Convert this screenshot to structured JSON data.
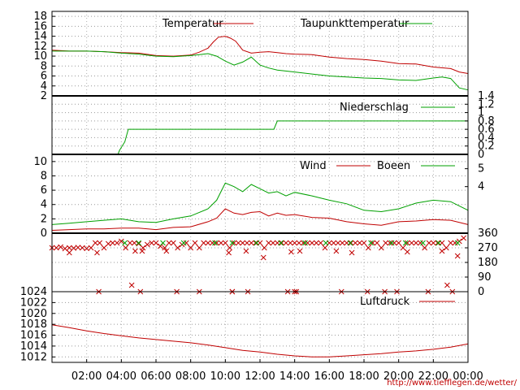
{
  "chart_data": [
    {
      "type": "line",
      "x_ticks": [
        "02:00",
        "04:00",
        "06:00",
        "08:00",
        "10:00",
        "12:00",
        "14:00",
        "16:00",
        "18:00",
        "20:00",
        "22:00",
        "00:00"
      ],
      "y_ticks": [
        "2",
        "4",
        "6",
        "8",
        "10",
        "12",
        "14",
        "16",
        "18"
      ],
      "ylim": [
        2,
        19
      ],
      "grid": true,
      "legend_position": "top",
      "series": [
        {
          "name": "Temperatur",
          "color": "#c00000",
          "x": [
            0,
            1,
            2,
            3,
            4,
            5,
            6,
            7,
            8,
            8.5,
            9,
            9.3,
            9.6,
            10,
            10.3,
            10.6,
            11,
            11.5,
            12,
            12.5,
            13,
            13.5,
            14,
            15,
            16,
            17,
            18,
            19,
            20,
            21,
            22,
            23,
            23.5,
            24
          ],
          "y": [
            11.2,
            11.0,
            11.0,
            10.9,
            10.7,
            10.6,
            10.1,
            10.0,
            10.2,
            10.8,
            11.6,
            12.8,
            13.8,
            14.0,
            13.6,
            13.0,
            11.2,
            10.6,
            10.8,
            10.9,
            10.7,
            10.5,
            10.4,
            10.3,
            9.8,
            9.5,
            9.3,
            9.0,
            8.5,
            8.4,
            7.8,
            7.5,
            6.8,
            6.5
          ]
        },
        {
          "name": "Taupunkttemperatur",
          "color": "#00a000",
          "x": [
            0,
            1,
            2,
            3,
            4,
            5,
            6,
            7,
            8,
            8.5,
            9,
            9.5,
            10,
            10.5,
            11,
            11.5,
            12,
            12.5,
            13,
            14,
            15,
            16,
            17,
            18,
            19,
            20,
            21,
            22,
            22.5,
            23,
            23.5,
            24
          ],
          "y": [
            11.0,
            11.0,
            11.0,
            10.9,
            10.6,
            10.4,
            10.0,
            9.9,
            10.1,
            10.3,
            10.5,
            10.0,
            9.0,
            8.2,
            8.8,
            9.8,
            8.2,
            7.6,
            7.2,
            6.8,
            6.4,
            6.0,
            5.8,
            5.6,
            5.5,
            5.2,
            5.1,
            5.6,
            5.8,
            5.5,
            3.6,
            3.2
          ]
        }
      ]
    },
    {
      "type": "line",
      "y_ticks_right": [
        "0",
        "0.2",
        "0.4",
        "0.6",
        "0.8",
        "1",
        "1.2",
        "1.4"
      ],
      "ylim": [
        0,
        1.4
      ],
      "grid": true,
      "legend_position": "top-right",
      "series": [
        {
          "name": "Niederschlag",
          "color": "#00a000",
          "x": [
            0,
            3.8,
            3.9,
            4.2,
            4.4,
            12.8,
            13.0,
            24
          ],
          "y": [
            0,
            0,
            0.1,
            0.3,
            0.6,
            0.6,
            0.8,
            0.8
          ]
        }
      ]
    },
    {
      "type": "line",
      "y_ticks": [
        "0",
        "2",
        "4",
        "6",
        "8",
        "10"
      ],
      "y_ticks_right": [
        "4",
        "5"
      ],
      "ylim": [
        0,
        11
      ],
      "grid": true,
      "legend_position": "top-right",
      "series": [
        {
          "name": "Wind",
          "color": "#c00000",
          "x": [
            0,
            1,
            2,
            3,
            4,
            5,
            6,
            7,
            8,
            9,
            9.5,
            10,
            10.5,
            11,
            11.5,
            12,
            12.5,
            13,
            13.5,
            14,
            15,
            16,
            17,
            18,
            19,
            20,
            21,
            22,
            23,
            24
          ],
          "y": [
            0.4,
            0.5,
            0.6,
            0.6,
            0.7,
            0.7,
            0.5,
            0.8,
            0.9,
            1.6,
            2.1,
            3.4,
            2.8,
            2.6,
            2.9,
            3.0,
            2.4,
            2.8,
            2.5,
            2.6,
            2.2,
            2.1,
            1.6,
            1.3,
            1.1,
            1.6,
            1.7,
            1.9,
            1.8,
            1.2
          ]
        },
        {
          "name": "Boeen",
          "color": "#00a000",
          "x": [
            0,
            1,
            2,
            3,
            4,
            5,
            6,
            7,
            8,
            9,
            9.5,
            10,
            10.5,
            11,
            11.5,
            12,
            12.5,
            13,
            13.5,
            14,
            15,
            16,
            17,
            18,
            19,
            20,
            21,
            22,
            23,
            24
          ],
          "y": [
            1.2,
            1.4,
            1.6,
            1.8,
            2.0,
            1.6,
            1.5,
            2.0,
            2.4,
            3.4,
            4.6,
            7.0,
            6.5,
            5.8,
            6.8,
            6.2,
            5.6,
            5.8,
            5.2,
            5.7,
            5.2,
            4.6,
            4.1,
            3.2,
            3.0,
            3.4,
            4.2,
            4.6,
            4.4,
            3.2
          ]
        }
      ]
    },
    {
      "type": "scatter",
      "y_ticks_right": [
        "0",
        "90",
        "180",
        "270",
        "360"
      ],
      "ylim": [
        0,
        360
      ],
      "grid": true,
      "series": [
        {
          "name": "",
          "color": "#c00000",
          "marker": "x",
          "x": [
            0,
            0.25,
            0.5,
            0.75,
            1,
            1.25,
            1.5,
            1.75,
            2,
            2.25,
            2.5,
            2.75,
            3,
            3.25,
            3.5,
            3.75,
            4,
            4.25,
            4.5,
            4.75,
            5,
            5.25,
            5.5,
            5.75,
            6,
            6.25,
            6.5,
            6.75,
            7,
            7.25,
            7.5,
            7.75,
            8,
            8.25,
            8.5,
            8.75,
            9,
            9.25,
            9.5,
            9.75,
            10,
            10.25,
            10.5,
            10.75,
            11,
            11.25,
            11.5,
            11.75,
            12,
            12.25,
            12.5,
            12.75,
            13,
            13.25,
            13.5,
            13.75,
            14,
            14.25,
            14.5,
            14.75,
            15,
            15.25,
            15.5,
            15.75,
            16,
            16.25,
            16.5,
            16.75,
            17,
            17.25,
            17.5,
            17.75,
            18,
            18.25,
            18.5,
            18.75,
            19,
            19.25,
            19.5,
            19.75,
            20,
            20.25,
            20.5,
            20.75,
            21,
            21.25,
            21.5,
            21.75,
            22,
            22.25,
            22.5,
            22.75,
            23,
            23.25,
            23.5,
            23.75,
            1,
            2.6,
            4.8,
            5.2,
            6.6,
            10.2,
            11.2,
            12.2,
            13.8,
            14.3,
            16.4,
            17.3,
            20.5,
            22.5,
            23.4,
            2.7,
            5.1,
            7.2,
            8.5,
            10.4,
            11.3,
            13.6,
            14.1,
            16.7,
            18.2,
            19.9,
            21.7,
            23.1,
            4.6,
            10.4,
            14.0,
            19.2,
            22.8
          ],
          "y": [
            270,
            270,
            275,
            265,
            270,
            268,
            272,
            270,
            266,
            270,
            300,
            300,
            270,
            295,
            300,
            300,
            310,
            270,
            300,
            300,
            295,
            270,
            290,
            300,
            300,
            280,
            270,
            300,
            300,
            270,
            290,
            300,
            270,
            300,
            270,
            300,
            300,
            300,
            300,
            300,
            300,
            270,
            300,
            300,
            300,
            300,
            300,
            300,
            300,
            270,
            300,
            300,
            300,
            300,
            300,
            300,
            300,
            300,
            300,
            300,
            300,
            300,
            300,
            270,
            300,
            300,
            300,
            300,
            300,
            300,
            300,
            300,
            300,
            270,
            300,
            300,
            270,
            300,
            300,
            300,
            300,
            270,
            300,
            300,
            300,
            300,
            270,
            300,
            300,
            300,
            300,
            270,
            300,
            300,
            310,
            330,
            240,
            240,
            250,
            250,
            250,
            240,
            250,
            210,
            245,
            250,
            250,
            240,
            245,
            250,
            220,
            0,
            0,
            0,
            0,
            0,
            0,
            0,
            0,
            0,
            0,
            0,
            0,
            0,
            40,
            0,
            0,
            0,
            40
          ]
        },
        {
          "name": "",
          "color": "#00a000",
          "marker": "x",
          "x": [
            4.2,
            5.0,
            6.4,
            7.6,
            9.4,
            10.4,
            11.8,
            13.2,
            14.6,
            15.8,
            17.2,
            18.4,
            19.6,
            20.4,
            21.4,
            22.3,
            23.4
          ],
          "y": [
            300,
            300,
            300,
            300,
            300,
            300,
            300,
            300,
            300,
            300,
            300,
            300,
            300,
            300,
            300,
            300,
            300
          ]
        }
      ]
    },
    {
      "type": "line",
      "y_ticks": [
        "1012",
        "1014",
        "1016",
        "1018",
        "1020",
        "1022",
        "1024"
      ],
      "ylim": [
        1011,
        1024
      ],
      "grid": true,
      "legend_position": "top-right",
      "series": [
        {
          "name": "Luftdruck",
          "color": "#c00000",
          "x": [
            0,
            1,
            2,
            3,
            4,
            5,
            6,
            7,
            8,
            9,
            10,
            11,
            12,
            13,
            14,
            15,
            16,
            17,
            18,
            19,
            20,
            21,
            22,
            23,
            24
          ],
          "y": [
            1017.9,
            1017.4,
            1016.8,
            1016.3,
            1015.9,
            1015.5,
            1015.2,
            1014.9,
            1014.6,
            1014.2,
            1013.7,
            1013.2,
            1012.9,
            1012.5,
            1012.2,
            1012.0,
            1012.0,
            1012.2,
            1012.4,
            1012.6,
            1012.9,
            1013.1,
            1013.4,
            1013.8,
            1014.4
          ]
        }
      ]
    }
  ],
  "credit": "http://www.tiefflegen.de/wetter/"
}
